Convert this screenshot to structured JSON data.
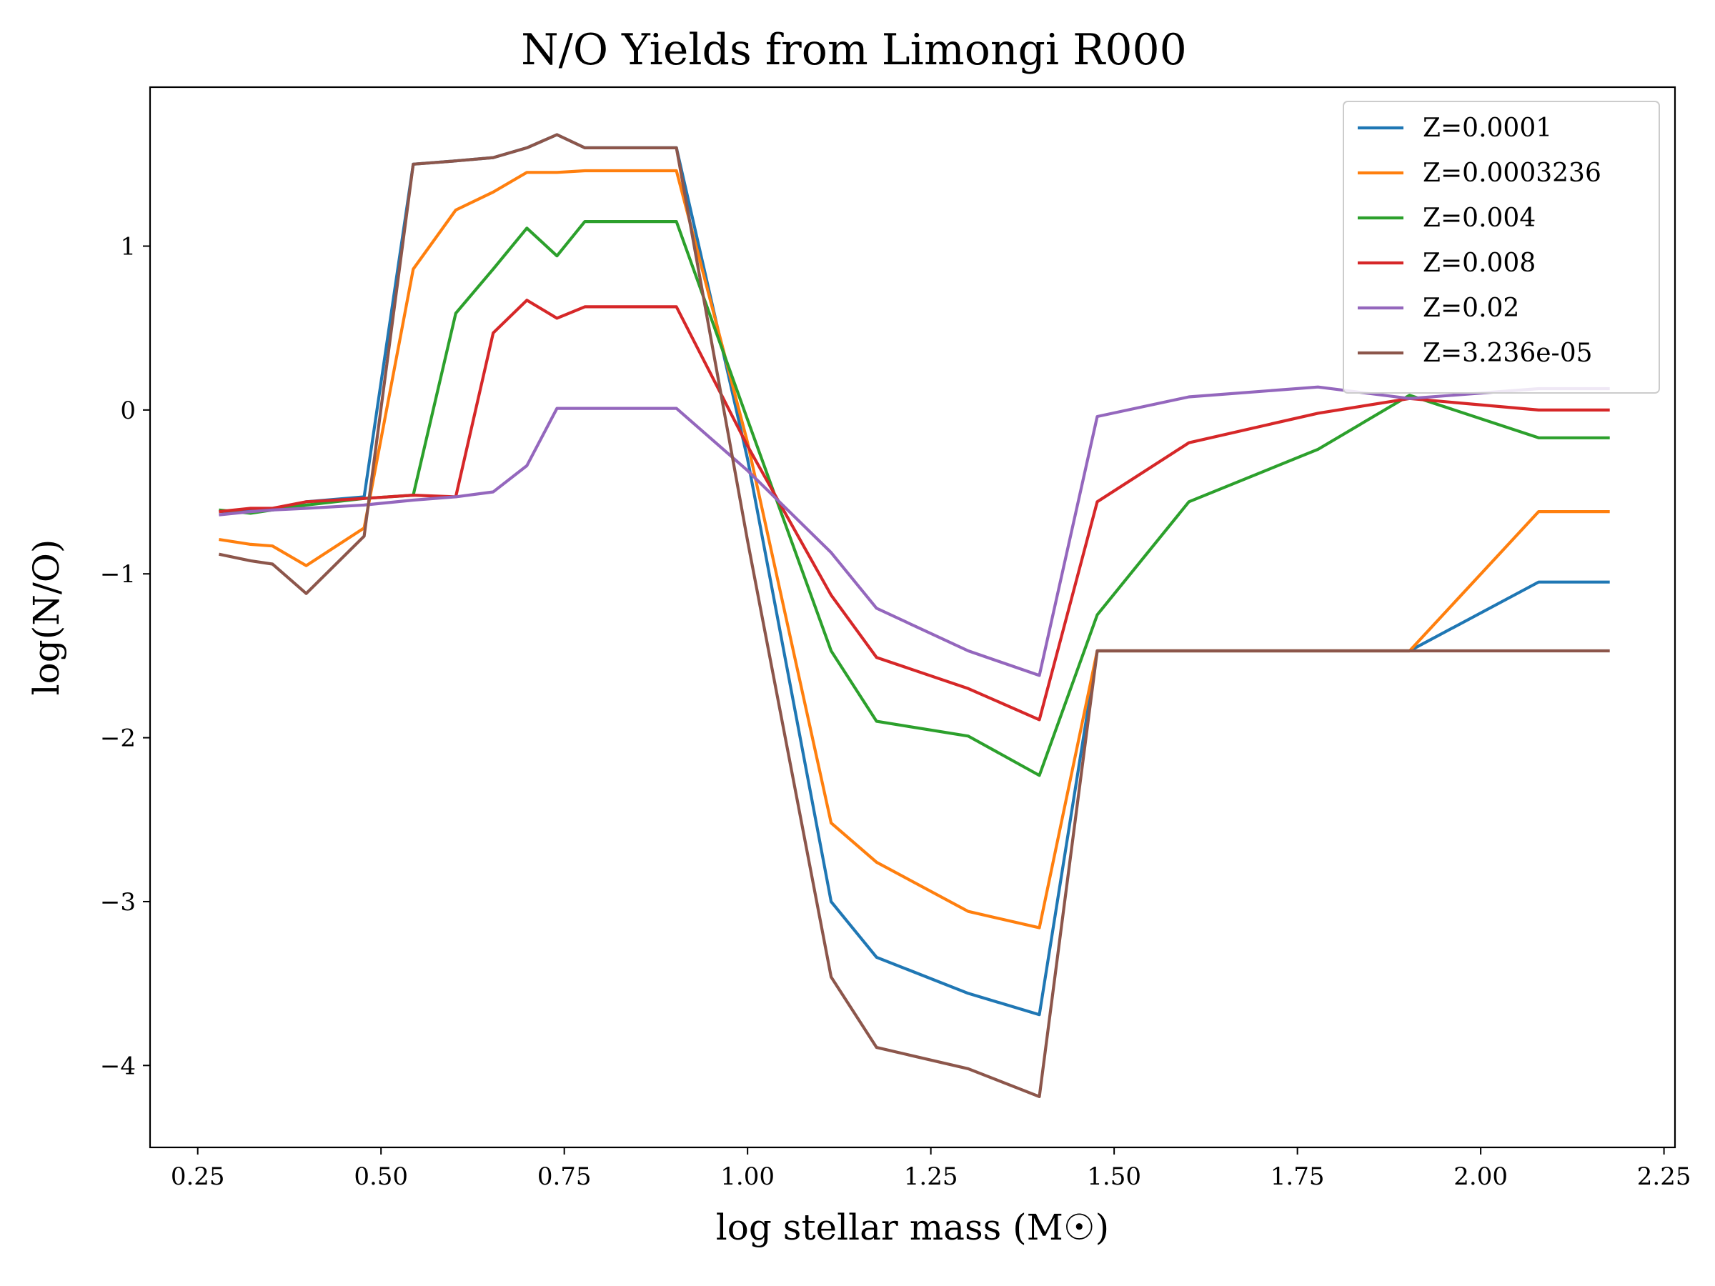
{
  "chart_data": {
    "type": "line",
    "title": "N/O Yields from Limongi R000",
    "xlabel": "log stellar mass (M☉)",
    "ylabel": "log(N/O)",
    "xlim": [
      0.185,
      2.265
    ],
    "ylim": [
      -4.5,
      1.97
    ],
    "xticks": [
      0.25,
      0.5,
      0.75,
      1.0,
      1.25,
      1.5,
      1.75,
      2.0,
      2.25
    ],
    "xtick_labels": [
      "0.25",
      "0.50",
      "0.75",
      "1.00",
      "1.25",
      "1.50",
      "1.75",
      "2.00",
      "2.25"
    ],
    "yticks": [
      1,
      0,
      -1,
      -2,
      -3,
      -4
    ],
    "ytick_labels": [
      "1",
      "0",
      "−1",
      "−2",
      "−3",
      "−4"
    ],
    "grid": false,
    "legend_position": "top-right",
    "x": [
      0.279,
      0.322,
      0.352,
      0.398,
      0.477,
      0.544,
      0.602,
      0.653,
      0.699,
      0.74,
      0.778,
      0.903,
      1.0,
      1.114,
      1.176,
      1.301,
      1.398,
      1.477,
      1.602,
      1.778,
      1.903,
      2.079,
      2.176
    ],
    "series": [
      {
        "name": "Z=0.0001",
        "color": "#1f77b4",
        "values": [
          -0.62,
          -0.61,
          -0.61,
          -0.56,
          -0.53,
          1.5,
          1.52,
          1.54,
          1.6,
          1.68,
          1.6,
          1.6,
          -0.3,
          -3.0,
          -3.34,
          -3.56,
          -3.69,
          -1.47,
          -1.47,
          -1.47,
          -1.47,
          -1.05,
          -1.05
        ]
      },
      {
        "name": "Z=0.0003236",
        "color": "#ff7f0e",
        "values": [
          -0.79,
          -0.82,
          -0.83,
          -0.95,
          -0.72,
          0.86,
          1.22,
          1.33,
          1.45,
          1.45,
          1.46,
          1.46,
          -0.2,
          -2.52,
          -2.76,
          -3.06,
          -3.16,
          -1.47,
          -1.47,
          -1.47,
          -1.47,
          -0.62,
          -0.62
        ]
      },
      {
        "name": "Z=0.004",
        "color": "#2ca02c",
        "values": [
          -0.61,
          -0.63,
          -0.61,
          -0.58,
          -0.54,
          -0.52,
          0.59,
          0.86,
          1.11,
          0.94,
          1.15,
          1.15,
          -0.06,
          -1.47,
          -1.9,
          -1.99,
          -2.23,
          -1.25,
          -0.56,
          -0.24,
          0.09,
          -0.17,
          -0.17
        ]
      },
      {
        "name": "Z=0.008",
        "color": "#d62728",
        "values": [
          -0.62,
          -0.6,
          -0.6,
          -0.56,
          -0.54,
          -0.52,
          -0.53,
          0.47,
          0.67,
          0.56,
          0.63,
          0.63,
          -0.22,
          -1.13,
          -1.51,
          -1.7,
          -1.89,
          -0.56,
          -0.2,
          -0.02,
          0.07,
          0.0,
          0.0
        ]
      },
      {
        "name": "Z=0.02",
        "color": "#9467bd",
        "values": [
          -0.64,
          -0.62,
          -0.61,
          -0.6,
          -0.58,
          -0.55,
          -0.53,
          -0.5,
          -0.34,
          0.01,
          0.01,
          0.01,
          -0.37,
          -0.87,
          -1.21,
          -1.47,
          -1.62,
          -0.04,
          0.08,
          0.14,
          0.07,
          0.13,
          0.13
        ]
      },
      {
        "name": "Z=3.236e-05",
        "color": "#8c564b",
        "values": [
          -0.88,
          -0.92,
          -0.94,
          -1.12,
          -0.77,
          1.5,
          1.52,
          1.54,
          1.6,
          1.68,
          1.6,
          1.6,
          -0.8,
          -3.46,
          -3.89,
          -4.02,
          -4.19,
          -1.47,
          -1.47,
          -1.47,
          -1.47,
          -1.47,
          -1.47
        ]
      }
    ]
  }
}
